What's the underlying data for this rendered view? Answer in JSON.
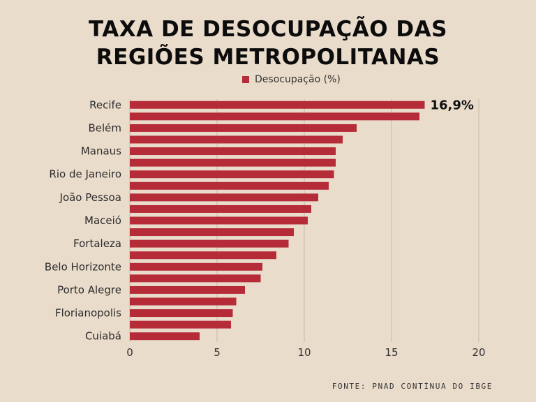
{
  "header": {
    "title_line1": "TAXA DE DESOCUPAÇÃO DAS",
    "title_line2": "REGIÕES METROPOLITANAS"
  },
  "source": "FONTE: PNAD CONTÍNUA DO IBGE",
  "colors": {
    "bar": "#b52c38",
    "background": "#eadccb",
    "grid": "#d2c3b3"
  },
  "chart_data": {
    "type": "bar",
    "orientation": "horizontal",
    "categories": [
      "Recife",
      "",
      "Belém",
      "",
      "Manaus",
      "",
      "Rio de Janeiro",
      "",
      "João Pessoa",
      "",
      "Maceió",
      "",
      "Fortaleza",
      "",
      "Belo Horizonte",
      "",
      "Porto Alegre",
      "",
      "Florianopolis",
      "",
      "Cuiabá"
    ],
    "series": [
      {
        "name": "Desocupação (%)",
        "values": [
          16.9,
          16.6,
          13.0,
          12.2,
          11.8,
          11.8,
          11.7,
          11.4,
          10.8,
          10.4,
          10.2,
          9.4,
          9.1,
          8.4,
          7.6,
          7.5,
          6.6,
          6.1,
          5.9,
          5.8,
          4.0
        ]
      }
    ],
    "data_labels": [
      {
        "index": 0,
        "text": "16,9%"
      }
    ],
    "xlim": [
      0,
      20
    ],
    "xticks": [
      0,
      5,
      10,
      15,
      20
    ],
    "grid": true,
    "legend": "top"
  }
}
